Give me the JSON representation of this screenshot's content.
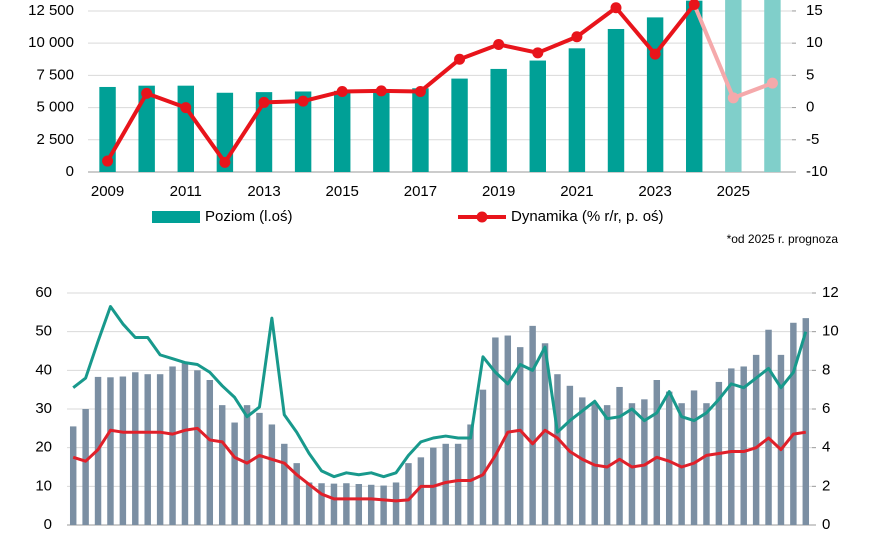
{
  "chart_data": [
    {
      "type": "combo",
      "categories": [
        "2009",
        null,
        "2011",
        null,
        "2013",
        null,
        "2015",
        null,
        "2017",
        null,
        "2019",
        null,
        "2021",
        null,
        "2023",
        null,
        "2025",
        null
      ],
      "forecast_from": "2025",
      "note": "*od 2025 r. prognoza",
      "series": [
        {
          "name": "Poziom (l.oś)",
          "type": "bar",
          "color": "#00a096",
          "forecast_color": "#80cfca",
          "values": [
            6600,
            6700,
            6700,
            6150,
            6200,
            6250,
            6300,
            6350,
            6500,
            7250,
            8000,
            8650,
            9600,
            11100,
            12000,
            13300,
            14000,
            14500
          ]
        },
        {
          "name": "Dynamika (% r/r, p. oś)",
          "type": "line",
          "axis": "y2",
          "color": "#e8141b",
          "forecast_color": "#f5a9ab",
          "marker": true,
          "values": [
            -8.3,
            2.2,
            0,
            -8.5,
            0.8,
            1,
            2.5,
            2.6,
            2.5,
            7.5,
            9.8,
            8.5,
            11,
            15.5,
            8.3,
            16,
            1.5,
            3.8
          ]
        }
      ],
      "ylim": [
        0,
        13350
      ],
      "yticks": [
        0,
        {
          "value": 2500,
          "label": "2 500"
        },
        {
          "value": 5000,
          "label": "5 000"
        },
        {
          "value": 7500,
          "label": "7 500"
        },
        {
          "value": 10000,
          "label": "10 000"
        },
        {
          "value": 12500,
          "label": "12 500"
        }
      ],
      "y2lim": [
        -10,
        16.7
      ],
      "y2ticks": [
        -10,
        -5,
        0,
        5,
        10,
        15
      ],
      "grid": true,
      "legend": "bottom"
    },
    {
      "type": "combo",
      "categories": [
        null,
        null,
        null,
        null,
        null,
        null,
        null,
        null,
        null,
        null,
        null,
        null,
        null,
        null,
        null,
        null,
        null,
        null,
        null,
        null,
        null,
        null,
        null,
        null,
        null,
        null,
        null,
        null,
        null,
        null,
        null,
        null,
        null,
        null,
        null,
        null,
        null,
        null,
        null,
        null,
        null,
        null,
        null,
        null,
        null,
        null,
        null,
        null,
        null,
        null,
        null,
        null,
        null,
        null,
        null,
        null,
        null,
        null,
        null,
        null
      ],
      "series": [
        {
          "type": "bar",
          "color": "#7b8fa3",
          "values": [
            25.5,
            30,
            38.3,
            38.2,
            38.4,
            39.5,
            39,
            39,
            41,
            42,
            40,
            37.5,
            31,
            26.5,
            31,
            29,
            26,
            21,
            16,
            11,
            10.8,
            10.7,
            10.8,
            10.6,
            10.4,
            10.2,
            11,
            16,
            17.5,
            20,
            21,
            21,
            26,
            35,
            48.5,
            49,
            46,
            51.5,
            47,
            39,
            36,
            33,
            31.5,
            31,
            35.7,
            31.5,
            32.5,
            37.5,
            34.5,
            31.5,
            34.8,
            31.5,
            37,
            40.5,
            41,
            44,
            50.5,
            44,
            52.3,
            53.5
          ]
        },
        {
          "type": "line",
          "axis": "y2",
          "color": "#18998c",
          "values": [
            7.1,
            7.6,
            9.5,
            11.3,
            10.4,
            9.7,
            9.7,
            8.8,
            8.6,
            8.4,
            8.3,
            7.9,
            7.2,
            6.6,
            5.6,
            6.1,
            10.7,
            5.7,
            4.8,
            3.7,
            2.8,
            2.5,
            2.7,
            2.6,
            2.7,
            2.5,
            2.7,
            3.6,
            4.3,
            4.5,
            4.6,
            4.5,
            4.5,
            8.7,
            7.9,
            7.3,
            8.3,
            8,
            9.2,
            4.8,
            5.4,
            5.9,
            6.4,
            5.5,
            5.6,
            6,
            5.4,
            5.8,
            6.9,
            5.6,
            5.4,
            5.8,
            6.5,
            7.3,
            7.1,
            7.6,
            8.1,
            7.1,
            7.9,
            10
          ]
        },
        {
          "type": "line",
          "axis": "y2",
          "color": "#e0202a",
          "values": [
            3.5,
            3.3,
            3.9,
            4.9,
            4.8,
            4.8,
            4.8,
            4.8,
            4.7,
            4.9,
            5,
            4.4,
            4.3,
            3.5,
            3.2,
            3.6,
            3.4,
            3.2,
            2.6,
            2.1,
            1.6,
            1.35,
            1.35,
            1.35,
            1.35,
            1.3,
            1.25,
            1.3,
            2,
            2,
            2.2,
            2.3,
            2.3,
            2.6,
            3.6,
            4.8,
            4.9,
            4.2,
            4.9,
            4.5,
            3.8,
            3.4,
            3.1,
            3,
            3.4,
            3,
            3.1,
            3.5,
            3.3,
            3,
            3.2,
            3.6,
            3.7,
            3.8,
            3.8,
            4,
            4.5,
            3.9,
            4.7,
            4.8
          ]
        }
      ],
      "ylim": [
        0,
        60
      ],
      "yticks": [
        0,
        10,
        20,
        30,
        40,
        50,
        60
      ],
      "y2lim": [
        0,
        12
      ],
      "y2ticks": [
        0,
        2,
        4,
        6,
        8,
        10,
        12
      ],
      "grid": true
    }
  ]
}
